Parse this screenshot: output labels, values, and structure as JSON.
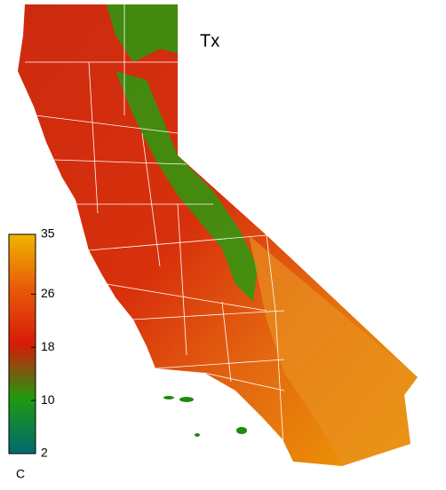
{
  "map": {
    "title": "Tx",
    "colorbar": {
      "label": "C",
      "lim": [
        2,
        35
      ],
      "ticks": [
        35,
        26,
        18,
        10,
        2
      ],
      "colors": [
        "#006a6e",
        "#1f9a10",
        "#d81a0a",
        "#e85a08",
        "#f0b400"
      ]
    }
  }
}
